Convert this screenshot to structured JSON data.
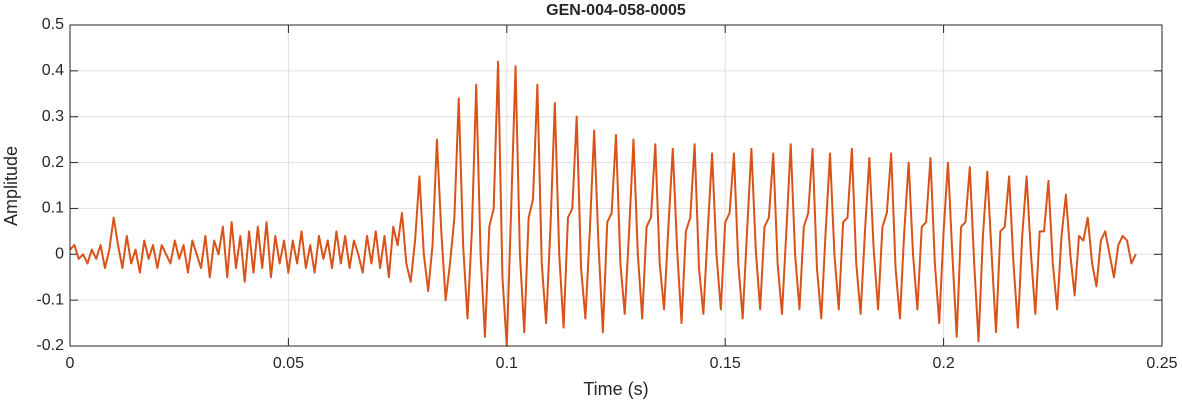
{
  "chart_data": {
    "type": "line",
    "title": "GEN-004-058-0005",
    "x_label": "Time (s)",
    "y_label": "Amplitude",
    "xlim": [
      0,
      0.25
    ],
    "ylim": [
      -0.2,
      0.5
    ],
    "xticks": [
      0,
      0.05,
      0.1,
      0.15,
      0.2,
      0.25
    ],
    "yticks": [
      -0.2,
      -0.1,
      0,
      0.1,
      0.2,
      0.3,
      0.4,
      0.5
    ],
    "grid": true,
    "x": [
      0,
      0.001,
      0.002,
      0.003,
      0.004,
      0.005,
      0.006,
      0.007,
      0.008,
      0.009,
      0.01,
      0.011,
      0.012,
      0.013,
      0.014,
      0.015,
      0.016,
      0.017,
      0.018,
      0.019,
      0.02,
      0.021,
      0.022,
      0.023,
      0.024,
      0.025,
      0.026,
      0.027,
      0.028,
      0.029,
      0.03,
      0.031,
      0.032,
      0.033,
      0.034,
      0.035,
      0.036,
      0.037,
      0.038,
      0.039,
      0.04,
      0.041,
      0.042,
      0.043,
      0.044,
      0.045,
      0.046,
      0.047,
      0.048,
      0.049,
      0.05,
      0.051,
      0.052,
      0.053,
      0.054,
      0.055,
      0.056,
      0.057,
      0.058,
      0.059,
      0.06,
      0.061,
      0.062,
      0.063,
      0.064,
      0.065,
      0.066,
      0.067,
      0.068,
      0.069,
      0.07,
      0.071,
      0.072,
      0.073,
      0.074,
      0.075,
      0.076,
      0.077,
      0.078,
      0.079,
      0.08,
      0.081,
      0.082,
      0.083,
      0.084,
      0.085,
      0.086,
      0.087,
      0.088,
      0.089,
      0.09,
      0.091,
      0.092,
      0.093,
      0.094,
      0.095,
      0.096,
      0.097,
      0.098,
      0.099,
      0.1,
      0.101,
      0.102,
      0.103,
      0.104,
      0.105,
      0.106,
      0.107,
      0.108,
      0.109,
      0.11,
      0.111,
      0.112,
      0.113,
      0.114,
      0.115,
      0.116,
      0.117,
      0.118,
      0.119,
      0.12,
      0.121,
      0.122,
      0.123,
      0.124,
      0.125,
      0.126,
      0.127,
      0.128,
      0.129,
      0.13,
      0.131,
      0.132,
      0.133,
      0.134,
      0.135,
      0.136,
      0.137,
      0.138,
      0.139,
      0.14,
      0.141,
      0.142,
      0.143,
      0.144,
      0.145,
      0.146,
      0.147,
      0.148,
      0.149,
      0.15,
      0.151,
      0.152,
      0.153,
      0.154,
      0.155,
      0.156,
      0.157,
      0.158,
      0.159,
      0.16,
      0.161,
      0.162,
      0.163,
      0.164,
      0.165,
      0.166,
      0.167,
      0.168,
      0.169,
      0.17,
      0.171,
      0.172,
      0.173,
      0.174,
      0.175,
      0.176,
      0.177,
      0.178,
      0.179,
      0.18,
      0.181,
      0.182,
      0.183,
      0.184,
      0.185,
      0.186,
      0.187,
      0.188,
      0.189,
      0.19,
      0.191,
      0.192,
      0.193,
      0.194,
      0.195,
      0.196,
      0.197,
      0.198,
      0.199,
      0.2,
      0.201,
      0.202,
      0.203,
      0.204,
      0.205,
      0.206,
      0.207,
      0.208,
      0.209,
      0.21,
      0.211,
      0.212,
      0.213,
      0.214,
      0.215,
      0.216,
      0.217,
      0.218,
      0.219,
      0.22,
      0.221,
      0.222,
      0.223,
      0.224,
      0.225,
      0.226,
      0.227,
      0.228,
      0.229,
      0.23,
      0.231,
      0.232,
      0.233,
      0.234,
      0.235,
      0.236,
      0.237,
      0.238,
      0.239,
      0.24,
      0.241,
      0.242,
      0.243,
      0.244
    ],
    "series": [
      {
        "color": "#d95319",
        "values": [
          0.01,
          0.02,
          -0.01,
          0.0,
          -0.02,
          0.01,
          -0.01,
          0.02,
          -0.03,
          0.01,
          0.08,
          0.02,
          -0.03,
          0.04,
          -0.02,
          0.01,
          -0.04,
          0.03,
          -0.01,
          0.02,
          -0.03,
          0.02,
          0.0,
          -0.02,
          0.03,
          -0.01,
          0.02,
          -0.04,
          0.03,
          0.0,
          -0.03,
          0.04,
          -0.05,
          0.03,
          0.0,
          0.06,
          -0.05,
          0.07,
          -0.03,
          0.04,
          -0.06,
          0.05,
          -0.04,
          0.06,
          -0.03,
          0.07,
          -0.05,
          0.04,
          -0.02,
          0.03,
          -0.04,
          0.03,
          -0.02,
          0.05,
          -0.03,
          0.02,
          -0.04,
          0.04,
          -0.01,
          0.03,
          -0.03,
          0.05,
          -0.02,
          0.04,
          -0.03,
          0.03,
          0.0,
          -0.04,
          0.04,
          -0.02,
          0.05,
          -0.03,
          0.04,
          -0.05,
          0.06,
          0.02,
          0.09,
          -0.02,
          -0.06,
          0.03,
          0.17,
          0.0,
          -0.08,
          0.02,
          0.25,
          0.05,
          -0.1,
          -0.02,
          0.08,
          0.34,
          0.02,
          -0.14,
          0.05,
          0.37,
          0.0,
          -0.18,
          0.06,
          0.1,
          0.42,
          -0.05,
          -0.2,
          0.1,
          0.41,
          0.0,
          -0.17,
          0.08,
          0.12,
          0.37,
          -0.02,
          -0.15,
          0.06,
          0.33,
          0.0,
          -0.16,
          0.08,
          0.1,
          0.3,
          -0.03,
          -0.14,
          0.05,
          0.27,
          0.02,
          -0.17,
          0.07,
          0.09,
          0.26,
          -0.02,
          -0.13,
          0.05,
          0.25,
          0.0,
          -0.14,
          0.06,
          0.08,
          0.24,
          -0.02,
          -0.12,
          0.06,
          0.23,
          0.01,
          -0.15,
          0.05,
          0.08,
          0.24,
          -0.03,
          -0.13,
          0.05,
          0.22,
          0.0,
          -0.12,
          0.07,
          0.09,
          0.22,
          -0.02,
          -0.14,
          0.05,
          0.23,
          0.01,
          -0.12,
          0.06,
          0.08,
          0.22,
          -0.02,
          -0.13,
          0.05,
          0.24,
          0.0,
          -0.12,
          0.06,
          0.09,
          0.23,
          -0.03,
          -0.14,
          0.05,
          0.22,
          0.0,
          -0.12,
          0.07,
          0.08,
          0.23,
          -0.02,
          -0.13,
          0.05,
          0.21,
          0.01,
          -0.12,
          0.06,
          0.09,
          0.22,
          -0.03,
          -0.14,
          0.05,
          0.2,
          0.0,
          -0.12,
          0.06,
          0.07,
          0.21,
          -0.02,
          -0.15,
          0.05,
          0.2,
          0.0,
          -0.18,
          0.06,
          0.07,
          0.19,
          -0.02,
          -0.19,
          0.04,
          0.18,
          0.0,
          -0.17,
          0.05,
          0.06,
          0.17,
          -0.02,
          -0.16,
          0.04,
          0.17,
          0.0,
          -0.13,
          0.05,
          0.05,
          0.16,
          -0.02,
          -0.12,
          0.04,
          0.13,
          0.0,
          -0.09,
          0.04,
          0.03,
          0.08,
          -0.02,
          -0.07,
          0.03,
          0.05,
          0.0,
          -0.05,
          0.02,
          0.04,
          0.03,
          -0.02,
          0.0
        ]
      }
    ]
  }
}
